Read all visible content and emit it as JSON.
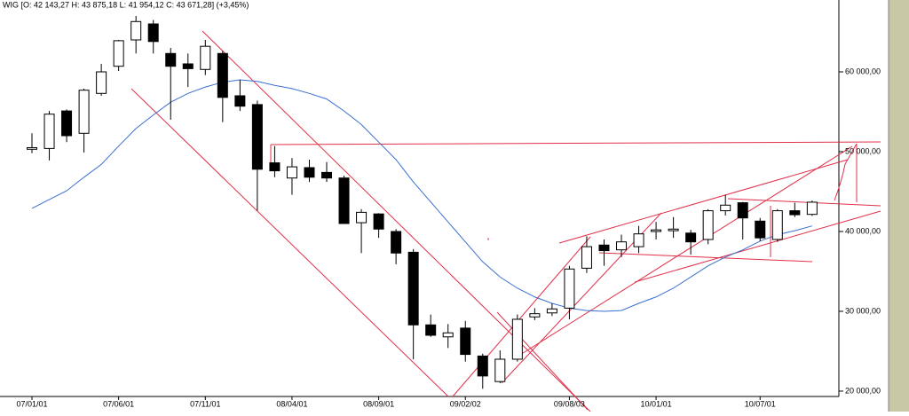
{
  "chart_data": {
    "type": "candlestick",
    "title": "WIG [O: 42 143,27 H: 43 875,18 L: 41 954,12 C: 43 671,28] (+3,45%)",
    "categories": [
      "07/01/01",
      null,
      null,
      null,
      null,
      "07/06/01",
      null,
      null,
      null,
      null,
      "07/11/01",
      null,
      null,
      null,
      null,
      "08/04/01",
      null,
      null,
      null,
      null,
      "08/09/01",
      null,
      null,
      null,
      null,
      "09/02/02",
      null,
      null,
      null,
      null,
      null,
      "09/08/03",
      null,
      null,
      null,
      null,
      "10/01/01",
      null,
      null,
      null,
      null,
      null,
      "10/07/01",
      null,
      null,
      null
    ],
    "open": [
      50300,
      50400,
      55100,
      52300,
      57300,
      60700,
      64000,
      66000,
      62300,
      61000,
      60300,
      62300,
      57000,
      55900,
      48600,
      46700,
      48000,
      47400,
      46700,
      41100,
      42200,
      40000,
      37400,
      28300,
      26800,
      27900,
      24400,
      21200,
      24000,
      29300,
      29800,
      30400,
      35400,
      38300,
      37700,
      38100,
      40000,
      40100,
      39800,
      39000,
      42600,
      43600,
      41300,
      39000,
      42600,
      42143.27
    ],
    "high": [
      52300,
      55100,
      55300,
      57900,
      61000,
      64000,
      67000,
      66500,
      63000,
      62300,
      64000,
      62600,
      59000,
      56400,
      50700,
      49200,
      49000,
      48700,
      47000,
      42800,
      42300,
      40300,
      37800,
      29600,
      28400,
      28800,
      24700,
      25100,
      29600,
      30400,
      31000,
      35700,
      39400,
      39000,
      39600,
      40700,
      41200,
      41800,
      40200,
      42800,
      44600,
      43700,
      41700,
      42800,
      43600,
      43875.18
    ],
    "low": [
      49800,
      48900,
      51200,
      49900,
      57000,
      60100,
      62300,
      62300,
      54000,
      58100,
      59600,
      53700,
      55100,
      42600,
      46800,
      44600,
      46200,
      46200,
      41000,
      37300,
      39200,
      35900,
      24000,
      26800,
      25400,
      23700,
      20300,
      21000,
      23700,
      28900,
      29400,
      29000,
      34800,
      35700,
      36800,
      37300,
      39000,
      39200,
      37100,
      38400,
      42000,
      39000,
      38800,
      38700,
      41800,
      41954.12
    ],
    "close": [
      50500,
      54700,
      52000,
      57700,
      60000,
      63900,
      66300,
      63800,
      60700,
      60400,
      63200,
      56800,
      55700,
      47800,
      47600,
      48100,
      46800,
      46700,
      41000,
      42400,
      40300,
      37300,
      28300,
      27000,
      27300,
      24600,
      21900,
      24000,
      29000,
      29700,
      30300,
      35300,
      38100,
      37600,
      38700,
      39700,
      40200,
      40300,
      38700,
      42600,
      43300,
      41700,
      39200,
      42600,
      42100,
      43671.28
    ],
    "moving_average": {
      "color": "#3a6fd0",
      "values": [
        42900,
        44000,
        45100,
        46800,
        48400,
        50700,
        52900,
        54600,
        56200,
        57300,
        58100,
        58700,
        59000,
        58800,
        58300,
        57900,
        57300,
        56600,
        55100,
        53400,
        51200,
        49000,
        46200,
        43700,
        41200,
        38700,
        36200,
        34300,
        32900,
        31800,
        31000,
        30400,
        30100,
        30000,
        30100,
        31000,
        31800,
        32900,
        34300,
        35700,
        36800,
        37700,
        38800,
        39600,
        40100,
        40700
      ]
    },
    "up_color": "#ffffff",
    "down_color": "#000000",
    "ylim": [
      19330,
      69000
    ],
    "yticks": [
      {
        "value": 20000,
        "label": "20 000,00"
      },
      {
        "value": 30000,
        "label": "30 000,00"
      },
      {
        "value": 40000,
        "label": "40 000,00"
      },
      {
        "value": 50000,
        "label": "50 000,00"
      },
      {
        "value": 60000,
        "label": "60 000,00"
      }
    ]
  }
}
